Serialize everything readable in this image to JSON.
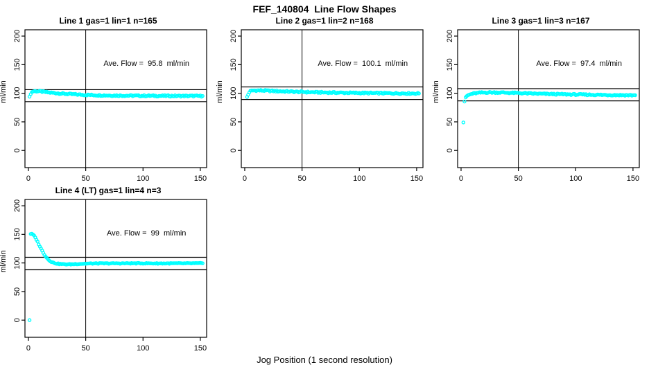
{
  "page_title": "FEF_140804  Line Flow Shapes",
  "x_axis_label": "Jog Position (1 second resolution)",
  "colors": {
    "points": "#00FFFF",
    "lines": "#000000",
    "background": "#FFFFFF"
  },
  "axes": {
    "y_axis_label": "ml/min",
    "x_ticks": [
      0,
      50,
      100,
      150
    ],
    "y_ticks": [
      0,
      50,
      100,
      150,
      200
    ],
    "xlim": [
      -3,
      155.5
    ],
    "ylim": [
      -30,
      211
    ],
    "grid": false
  },
  "chart_data": [
    {
      "type": "scatter",
      "title": "Line 1 gas=1 lin=1 n=165",
      "ave_flow_label": "Ave. Flow =  95.8  ml/min",
      "ave_flow": 95.8,
      "n": 165,
      "upper_ref": 106.3,
      "lower_ref": 85.3,
      "vline_x": 50,
      "x_step": 1,
      "band_halfwidth": 1.2,
      "outliers": [],
      "keypoints": [
        [
          1,
          93
        ],
        [
          2,
          99.5
        ],
        [
          3,
          102
        ],
        [
          4,
          103.3
        ],
        [
          6,
          103.8
        ],
        [
          10,
          103.3
        ],
        [
          14,
          102.3
        ],
        [
          18,
          101.3
        ],
        [
          24,
          100.3
        ],
        [
          30,
          99.3
        ],
        [
          38,
          98.3
        ],
        [
          48,
          97.3
        ],
        [
          60,
          96.6
        ],
        [
          75,
          96.1
        ],
        [
          95,
          95.7
        ],
        [
          120,
          95.4
        ],
        [
          152,
          95.2
        ]
      ]
    },
    {
      "type": "scatter",
      "title": "Line 2 gas=1 lin=2 n=168",
      "ave_flow_label": "Ave. Flow =  100.1  ml/min",
      "ave_flow": 100.1,
      "n": 168,
      "upper_ref": 111.1,
      "lower_ref": 89.1,
      "vline_x": 50,
      "x_step": 1,
      "band_halfwidth": 1.2,
      "outliers": [
        [
          2,
          93.5
        ]
      ],
      "keypoints": [
        [
          3,
          97.5
        ],
        [
          4,
          102
        ],
        [
          5,
          103.8
        ],
        [
          7,
          104.8
        ],
        [
          12,
          105
        ],
        [
          20,
          104.4
        ],
        [
          30,
          103.6
        ],
        [
          42,
          102.8
        ],
        [
          55,
          102
        ],
        [
          70,
          101.4
        ],
        [
          90,
          100.8
        ],
        [
          110,
          100.3
        ],
        [
          130,
          100
        ],
        [
          152,
          99.6
        ]
      ]
    },
    {
      "type": "scatter",
      "title": "Line 3 gas=1 lin=3 n=167",
      "ave_flow_label": "Ave. Flow =  97.4  ml/min",
      "ave_flow": 97.4,
      "n": 167,
      "upper_ref": 108.1,
      "lower_ref": 86.7,
      "vline_x": 50,
      "x_step": 1,
      "band_halfwidth": 1.1,
      "outliers": [
        [
          2,
          49
        ],
        [
          3,
          85.5
        ]
      ],
      "keypoints": [
        [
          4,
          92
        ],
        [
          5,
          95
        ],
        [
          6,
          96.5
        ],
        [
          8,
          98
        ],
        [
          10,
          99.2
        ],
        [
          13,
          100.2
        ],
        [
          17,
          101
        ],
        [
          24,
          101.5
        ],
        [
          35,
          101.3
        ],
        [
          48,
          100.5
        ],
        [
          60,
          99.6
        ],
        [
          75,
          98.8
        ],
        [
          95,
          98
        ],
        [
          115,
          97.4
        ],
        [
          135,
          96.9
        ],
        [
          152,
          96.5
        ]
      ]
    },
    {
      "type": "scatter",
      "title": "Line 4 (LT) gas=1 lin=4 n=3",
      "ave_flow_label": "Ave. Flow =  99  ml/min",
      "ave_flow": 99,
      "n": 3,
      "upper_ref": 109.9,
      "lower_ref": 88.1,
      "vline_x": 50,
      "x_step": 1,
      "band_halfwidth": 0.7,
      "outliers": [
        [
          1,
          0
        ]
      ],
      "keypoints": [
        [
          2,
          151
        ],
        [
          3,
          150.5
        ],
        [
          4,
          149.5
        ],
        [
          5,
          147.5
        ],
        [
          6,
          144.5
        ],
        [
          7,
          141
        ],
        [
          8,
          137
        ],
        [
          9,
          133
        ],
        [
          10,
          129
        ],
        [
          11,
          125
        ],
        [
          12,
          121.5
        ],
        [
          13,
          118
        ],
        [
          14,
          114.5
        ],
        [
          15,
          111.5
        ],
        [
          16,
          109
        ],
        [
          17,
          106.8
        ],
        [
          18,
          105
        ],
        [
          19,
          103.4
        ],
        [
          20,
          102
        ],
        [
          22,
          100.3
        ],
        [
          24,
          99.2
        ],
        [
          27,
          98.3
        ],
        [
          31,
          97.7
        ],
        [
          36,
          97.6
        ],
        [
          42,
          98.2
        ],
        [
          50,
          98.8
        ],
        [
          60,
          99.2
        ],
        [
          75,
          99.3
        ],
        [
          95,
          99.4
        ],
        [
          115,
          99.2
        ],
        [
          135,
          99.3
        ],
        [
          152,
          99.5
        ]
      ]
    }
  ]
}
